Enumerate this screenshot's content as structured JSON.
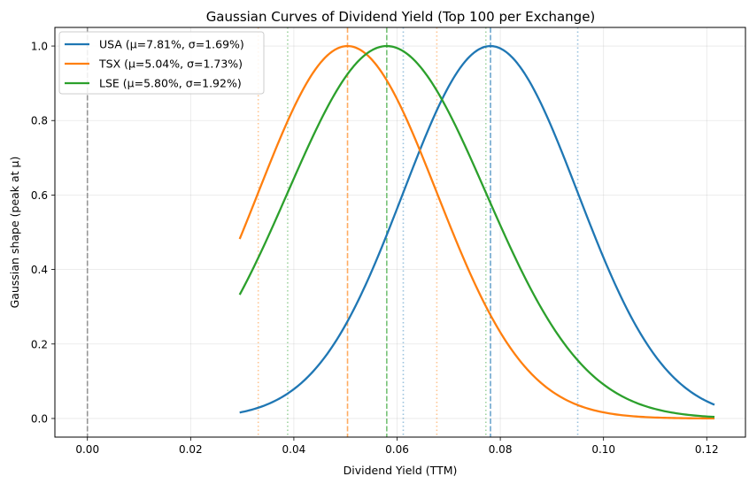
{
  "chart_data": {
    "type": "line",
    "title": "Gaussian Curves of Dividend Yield (Top 100 per Exchange)",
    "xlabel": "Dividend Yield (TTM)",
    "ylabel": "Gaussian shape (peak at μ)",
    "xlim": [
      -0.0063,
      0.1275
    ],
    "ylim": [
      -0.05,
      1.05
    ],
    "x_range": [
      0.0295,
      0.1215
    ],
    "xticks": [
      0.0,
      0.02,
      0.04,
      0.06,
      0.08,
      0.1,
      0.12
    ],
    "xtick_labels": [
      "0.00",
      "0.02",
      "0.04",
      "0.06",
      "0.08",
      "0.10",
      "0.12"
    ],
    "yticks": [
      0.0,
      0.2,
      0.4,
      0.6,
      0.8,
      1.0
    ],
    "ytick_labels": [
      "0.0",
      "0.2",
      "0.4",
      "0.6",
      "0.8",
      "1.0"
    ],
    "grid": true,
    "legend_position": "top-left",
    "zero_line": 0.0,
    "series": [
      {
        "name": "USA",
        "label": "USA (μ=7.81%, σ=1.69%)",
        "mu": 0.0781,
        "sigma": 0.0169,
        "color": "#1f77b4"
      },
      {
        "name": "TSX",
        "label": "TSX (μ=5.04%, σ=1.73%)",
        "mu": 0.0504,
        "sigma": 0.0173,
        "color": "#ff7f0e"
      },
      {
        "name": "LSE",
        "label": "LSE (μ=5.80%, σ=1.92%)",
        "mu": 0.058,
        "sigma": 0.0192,
        "color": "#2ca02c"
      }
    ]
  }
}
